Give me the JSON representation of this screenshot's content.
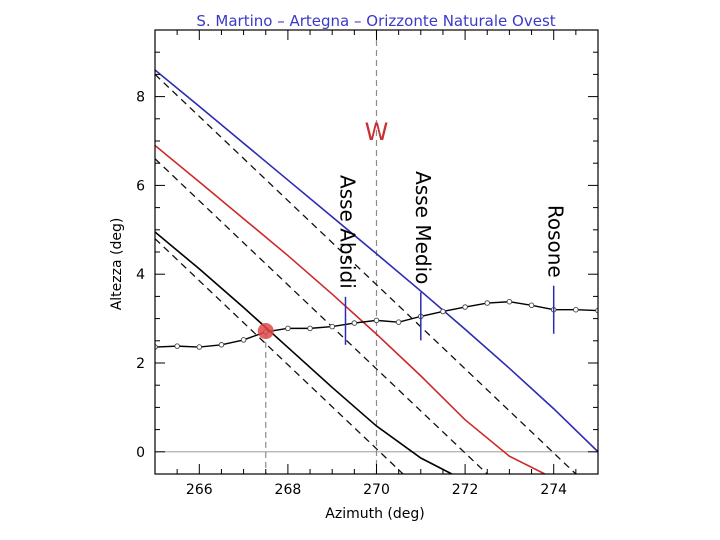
{
  "chart_data": {
    "type": "line",
    "title": "S. Martino – Artegna – Orizzonte Naturale Ovest",
    "xlabel": "Azimuth (deg)",
    "ylabel": "Altezza (deg)",
    "xlim": [
      265,
      275
    ],
    "ylim": [
      -0.5,
      9.5
    ],
    "xticks": [
      266,
      268,
      270,
      272,
      274
    ],
    "yticks": [
      0,
      2,
      4,
      6,
      8
    ],
    "grid": false,
    "legend": "none",
    "colors": {
      "blue": "#2b2bb4",
      "red": "#cc2a2a",
      "black": "#000000",
      "dashed": "#111111",
      "guide": "#8c8c8c",
      "marker": "#e04848"
    },
    "series": [
      {
        "color": "blue",
        "style": "solid",
        "x": [
          265,
          266,
          267,
          268,
          269,
          270,
          271,
          272,
          273,
          274,
          275
        ],
        "y": [
          8.6,
          7.78,
          6.95,
          6.12,
          5.29,
          4.46,
          3.62,
          2.76,
          1.88,
          0.97,
          0.0
        ]
      },
      {
        "color": "red",
        "style": "solid",
        "x": [
          265,
          266,
          267,
          268,
          269,
          270,
          271,
          272,
          273,
          273.8
        ],
        "y": [
          6.9,
          6.08,
          5.25,
          4.42,
          3.55,
          2.65,
          1.71,
          0.72,
          -0.1,
          -0.5
        ]
      },
      {
        "color": "black",
        "style": "solid",
        "x": [
          265,
          266,
          267,
          268,
          269,
          270,
          271,
          271.7
        ],
        "y": [
          4.95,
          4.12,
          3.25,
          2.35,
          1.45,
          0.58,
          -0.14,
          -0.5
        ]
      },
      {
        "color": "dashed",
        "style": "dashed",
        "x": [
          265,
          274.5
        ],
        "y": [
          8.5,
          -0.5
        ]
      },
      {
        "color": "dashed",
        "style": "dashed",
        "x": [
          265,
          272.5
        ],
        "y": [
          6.6,
          -0.5
        ]
      },
      {
        "color": "dashed",
        "style": "dashed",
        "x": [
          265,
          270.6
        ],
        "y": [
          4.8,
          -0.5
        ]
      }
    ],
    "horizon": {
      "x": [
        265.0,
        265.5,
        266.0,
        266.5,
        267.0,
        267.5,
        268.0,
        268.5,
        269.0,
        269.5,
        270.0,
        270.5,
        271.0,
        271.5,
        272.0,
        272.5,
        273.0,
        273.5,
        274.0,
        274.5,
        275.0
      ],
      "y": [
        2.36,
        2.38,
        2.36,
        2.41,
        2.52,
        2.7,
        2.78,
        2.78,
        2.82,
        2.9,
        2.96,
        2.92,
        3.05,
        3.16,
        3.26,
        3.35,
        3.38,
        3.3,
        3.2,
        3.2,
        3.18
      ]
    },
    "reference_lines": [
      {
        "axis": "x",
        "value": 270,
        "style": "dashed",
        "color": "guide"
      },
      {
        "axis": "x",
        "value": 267.5,
        "style": "dashed",
        "color": "guide",
        "y_to": 2.7
      },
      {
        "axis": "y",
        "value": 0,
        "style": "solid",
        "color": "guide"
      }
    ],
    "markers": [
      {
        "label": "Asse Absidi",
        "x": 269.3,
        "y": 2.95
      },
      {
        "label": "Asse Medio",
        "x": 271.0,
        "y": 3.05
      },
      {
        "label": "Rosone",
        "x": 274.0,
        "y": 3.2
      }
    ],
    "intersection": {
      "x": 267.5,
      "y": 2.72
    },
    "annotation_w": "W"
  }
}
